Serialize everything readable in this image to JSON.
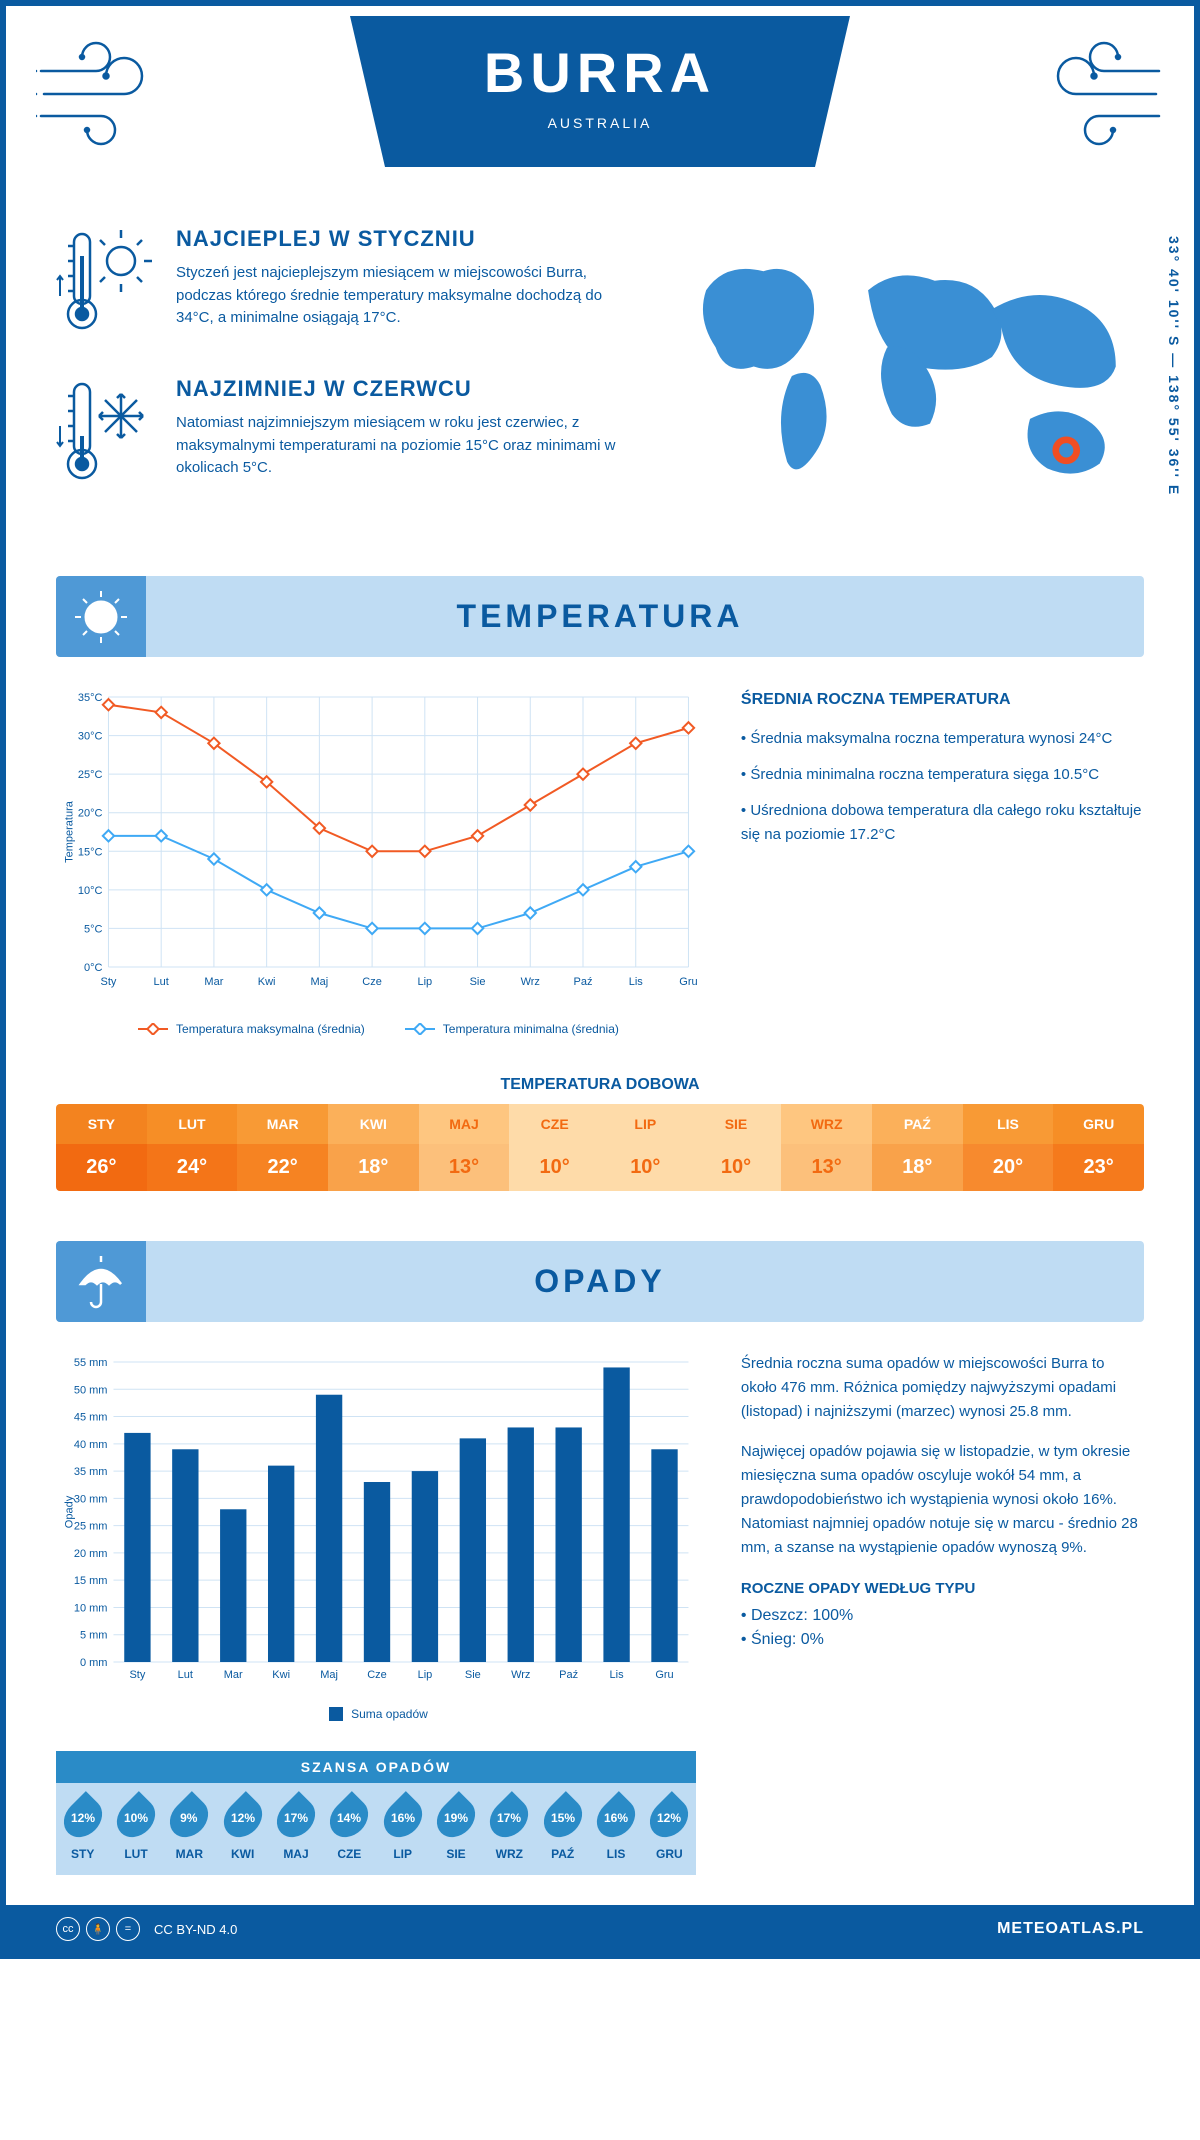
{
  "header": {
    "city": "BURRA",
    "country": "AUSTRALIA",
    "coordinates": "33° 40' 10'' S — 138° 55' 36'' E"
  },
  "intro": {
    "warm": {
      "title": "NAJCIEPLEJ W STYCZNIU",
      "text": "Styczeń jest najcieplejszym miesiącem w miejscowości Burra, podczas którego średnie temperatury maksymalne dochodzą do 34°C, a minimalne osiągają 17°C."
    },
    "cold": {
      "title": "NAJZIMNIEJ W CZERWCU",
      "text": "Natomiast najzimniejszym miesiącem w roku jest czerwiec, z maksymalnymi temperaturami na poziomie 15°C oraz minimami w okolicach 5°C."
    }
  },
  "temperature_section": {
    "title": "TEMPERATURA",
    "chart": {
      "type": "line",
      "months": [
        "Sty",
        "Lut",
        "Mar",
        "Kwi",
        "Maj",
        "Cze",
        "Lip",
        "Sie",
        "Wrz",
        "Paź",
        "Lis",
        "Gru"
      ],
      "y_label": "Temperatura",
      "y_ticks": [
        "0°C",
        "5°C",
        "10°C",
        "15°C",
        "20°C",
        "25°C",
        "30°C",
        "35°C"
      ],
      "ylim": [
        0,
        35
      ],
      "series": [
        {
          "name": "Temperatura maksymalna (średnia)",
          "color": "#f15a24",
          "values": [
            34,
            33,
            29,
            24,
            18,
            15,
            15,
            17,
            21,
            25,
            29,
            31
          ]
        },
        {
          "name": "Temperatura minimalna (średnia)",
          "color": "#3fa9f5",
          "values": [
            17,
            17,
            14,
            10,
            7,
            5,
            5,
            5,
            7,
            10,
            13,
            15
          ]
        }
      ],
      "grid_color": "#cfe3f4",
      "background_color": "#ffffff"
    },
    "side": {
      "title": "ŚREDNIA ROCZNA TEMPERATURA",
      "bullets": [
        "Średnia maksymalna roczna temperatura wynosi 24°C",
        "Średnia minimalna roczna temperatura sięga 10.5°C",
        "Uśredniona dobowa temperatura dla całego roku kształtuje się na poziomie 17.2°C"
      ]
    },
    "daily_title": "TEMPERATURA DOBOWA",
    "daily": {
      "months": [
        "STY",
        "LUT",
        "MAR",
        "KWI",
        "MAJ",
        "CZE",
        "LIP",
        "SIE",
        "WRZ",
        "PAŹ",
        "LIS",
        "GRU"
      ],
      "values": [
        "26°",
        "24°",
        "22°",
        "18°",
        "13°",
        "10°",
        "10°",
        "10°",
        "13°",
        "18°",
        "20°",
        "23°"
      ],
      "header_colors": [
        "#f3831f",
        "#f68e26",
        "#f89a35",
        "#fbb05a",
        "#fec680",
        "#fedba9",
        "#fedba9",
        "#fedba9",
        "#fec680",
        "#fbb05a",
        "#f89a35",
        "#f68e26"
      ],
      "cell_colors": [
        "#f26a11",
        "#f47518",
        "#f68322",
        "#f9a24a",
        "#fcc07b",
        "#fedba9",
        "#fedba9",
        "#fedba9",
        "#fcc07b",
        "#f9a24a",
        "#f78a2e",
        "#f57a1c"
      ],
      "text_colors": [
        "#ffffff",
        "#ffffff",
        "#ffffff",
        "#ffffff",
        "#f26a11",
        "#f26a11",
        "#f26a11",
        "#f26a11",
        "#f26a11",
        "#ffffff",
        "#ffffff",
        "#ffffff"
      ]
    }
  },
  "rain_section": {
    "title": "OPADY",
    "chart": {
      "type": "bar",
      "months": [
        "Sty",
        "Lut",
        "Mar",
        "Kwi",
        "Maj",
        "Cze",
        "Lip",
        "Sie",
        "Wrz",
        "Paź",
        "Lis",
        "Gru"
      ],
      "y_label": "Opady",
      "y_ticks": [
        "0 mm",
        "5 mm",
        "10 mm",
        "15 mm",
        "20 mm",
        "25 mm",
        "30 mm",
        "35 mm",
        "40 mm",
        "45 mm",
        "50 mm",
        "55 mm"
      ],
      "ylim": [
        0,
        55
      ],
      "values": [
        42,
        39,
        28,
        36,
        49,
        33,
        35,
        41,
        43,
        43,
        54,
        39
      ],
      "bar_color": "#0a5aa0",
      "grid_color": "#cfe3f4",
      "legend": "Suma opadów"
    },
    "text1": "Średnia roczna suma opadów w miejscowości Burra to około 476 mm. Różnica pomiędzy najwyższymi opadami (listopad) i najniższymi (marzec) wynosi 25.8 mm.",
    "text2": "Najwięcej opadów pojawia się w listopadzie, w tym okresie miesięczna suma opadów oscyluje wokół 54 mm, a prawdopodobieństwo ich wystąpienia wynosi około 16%. Natomiast najmniej opadów notuje się w marcu - średnio 28 mm, a szanse na wystąpienie opadów wynoszą 9%.",
    "chance": {
      "title": "SZANSA OPADÓW",
      "months": [
        "STY",
        "LUT",
        "MAR",
        "KWI",
        "MAJ",
        "CZE",
        "LIP",
        "SIE",
        "WRZ",
        "PAŹ",
        "LIS",
        "GRU"
      ],
      "values": [
        "12%",
        "10%",
        "9%",
        "12%",
        "17%",
        "14%",
        "16%",
        "19%",
        "17%",
        "15%",
        "16%",
        "12%"
      ]
    },
    "by_type": {
      "title": "ROCZNE OPADY WEDŁUG TYPU",
      "items": [
        "Deszcz: 100%",
        "Śnieg: 0%"
      ]
    }
  },
  "footer": {
    "license": "CC BY-ND 4.0",
    "site": "METEOATLAS.PL"
  },
  "colors": {
    "primary": "#0a5aa0",
    "light": "#bfdcf3",
    "accent": "#4f99d6",
    "orange": "#f15a24",
    "blue": "#3fa9f5",
    "marker": "#f04e23"
  }
}
